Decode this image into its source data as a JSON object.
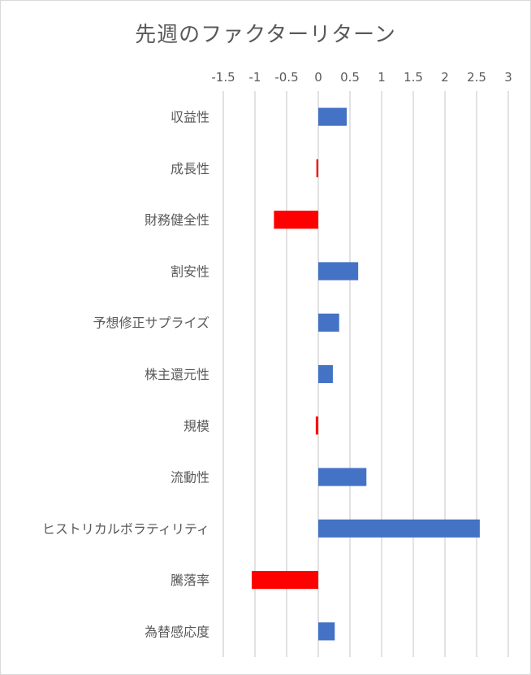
{
  "chart_data": {
    "type": "bar",
    "orientation": "horizontal",
    "title": "先週のファクターリターン",
    "xlabel": "",
    "ylabel": "",
    "xlim": [
      -1.5,
      3
    ],
    "xticks": [
      "-1.5",
      "-1",
      "-0.5",
      "0",
      "0.5",
      "1",
      "1.5",
      "2",
      "2.5",
      "3"
    ],
    "xtick_values": [
      -1.5,
      -1,
      -0.5,
      0,
      0.5,
      1,
      1.5,
      2,
      2.5,
      3
    ],
    "x_axis_position": "top",
    "gridlines": "vertical",
    "legend": "none",
    "categories": [
      "収益性",
      "成長性",
      "財務健全性",
      "割安性",
      "予想修正サプライズ",
      "株主還元性",
      "規模",
      "流動性",
      "ヒストリカルボラティリティ",
      "騰落率",
      "為替感応度"
    ],
    "values": [
      0.45,
      -0.03,
      -0.7,
      0.63,
      0.33,
      0.23,
      -0.04,
      0.76,
      2.55,
      -1.05,
      0.26
    ],
    "colors": {
      "positive": "#4472c4",
      "negative": "#ff0000",
      "grid": "#d9d9d9",
      "text": "#595959"
    }
  }
}
